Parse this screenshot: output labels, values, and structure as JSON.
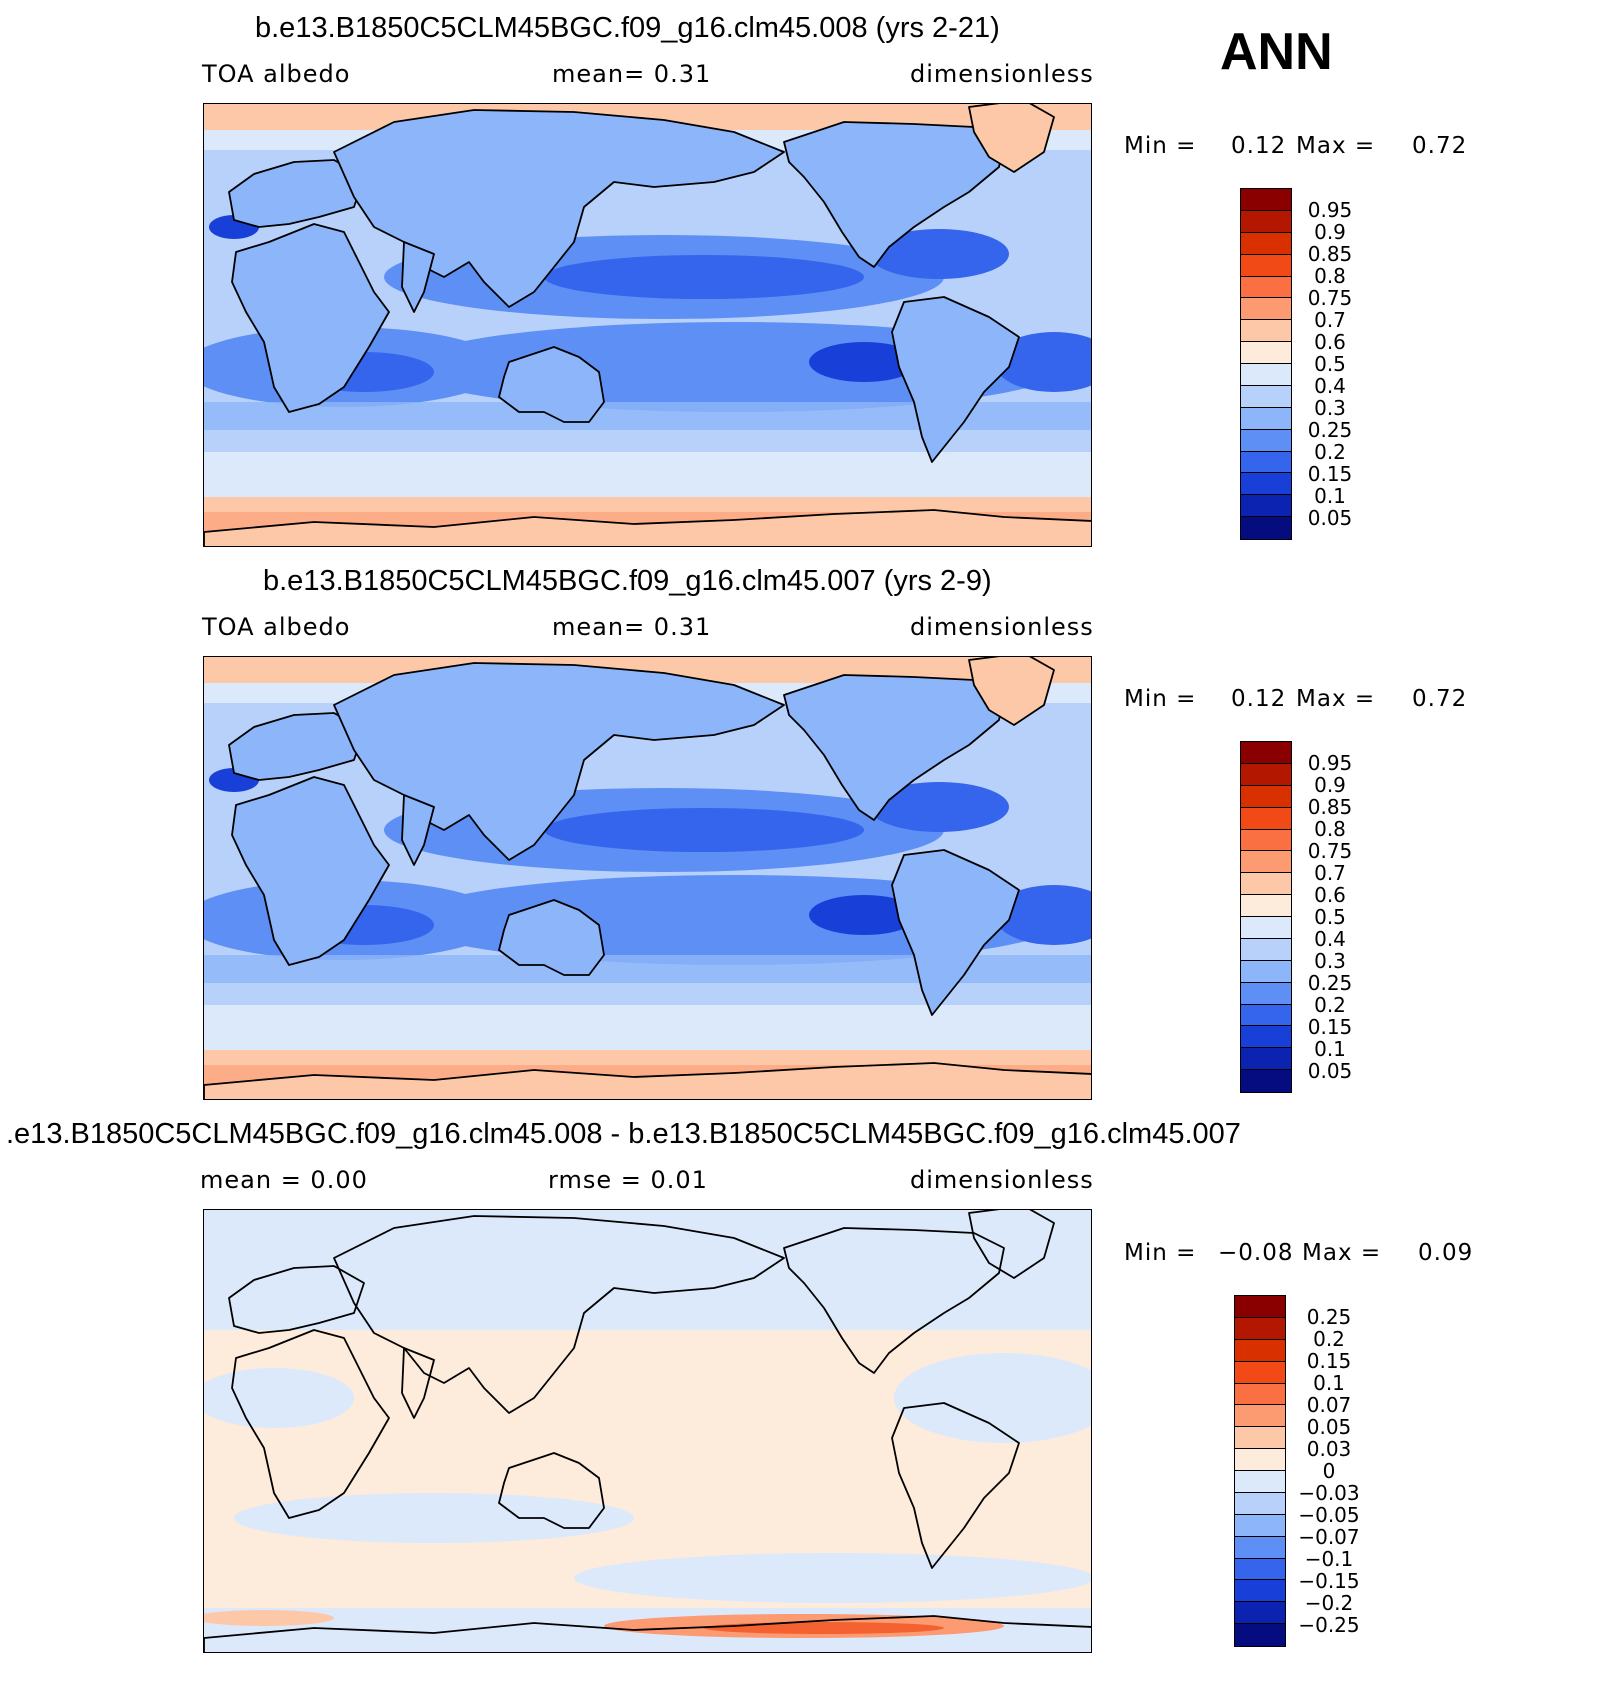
{
  "season": "ANN",
  "panels": [
    {
      "title": "b.e13.B1850C5CLM45BGC.f09_g16.clm45.008 (yrs 2-21)",
      "left_label": "TOA albedo",
      "middle_label": "mean=    0.31",
      "right_label": "dimensionless",
      "min_label": "Min =",
      "min_value": "0.12",
      "max_label": "Max =",
      "max_value": "0.72",
      "field": "absolute",
      "legend_colors": [
        "#8a0000",
        "#b31700",
        "#d93000",
        "#f24a16",
        "#fa7042",
        "#fc9a72",
        "#fdc8a8",
        "#fdebdc",
        "#dbe9fb",
        "#b7d1fa",
        "#8db5f9",
        "#5e8ff5",
        "#3565ec",
        "#1840d9",
        "#0c22b0",
        "#050c80"
      ],
      "legend_ticks": [
        "0.95",
        "0.9",
        "0.85",
        "0.8",
        "0.75",
        "0.7",
        "0.6",
        "0.5",
        "0.4",
        "0.3",
        "0.25",
        "0.2",
        "0.15",
        "0.1",
        "0.05"
      ]
    },
    {
      "title": "b.e13.B1850C5CLM45BGC.f09_g16.clm45.007 (yrs 2-9)",
      "left_label": "TOA albedo",
      "middle_label": "mean=    0.31",
      "right_label": "dimensionless",
      "min_label": "Min =",
      "min_value": "0.12",
      "max_label": "Max =",
      "max_value": "0.72",
      "field": "absolute",
      "legend_colors": [
        "#8a0000",
        "#b31700",
        "#d93000",
        "#f24a16",
        "#fa7042",
        "#fc9a72",
        "#fdc8a8",
        "#fdebdc",
        "#dbe9fb",
        "#b7d1fa",
        "#8db5f9",
        "#5e8ff5",
        "#3565ec",
        "#1840d9",
        "#0c22b0",
        "#050c80"
      ],
      "legend_ticks": [
        "0.95",
        "0.9",
        "0.85",
        "0.8",
        "0.75",
        "0.7",
        "0.6",
        "0.5",
        "0.4",
        "0.3",
        "0.25",
        "0.2",
        "0.15",
        "0.1",
        "0.05"
      ]
    },
    {
      "title": ".e13.B1850C5CLM45BGC.f09_g16.clm45.008 - b.e13.B1850C5CLM45BGC.f09_g16.clm45.007",
      "left_label": "mean =    0.00",
      "middle_label": "rmse =    0.01",
      "right_label": "dimensionless",
      "min_label": "Min =",
      "min_value": "−0.08",
      "max_label": "Max =",
      "max_value": "0.09",
      "field": "difference",
      "legend_colors": [
        "#8a0000",
        "#b31700",
        "#d93000",
        "#f24a16",
        "#fa7042",
        "#fc9a72",
        "#fdc8a8",
        "#fdebdc",
        "#dbe9fb",
        "#b7d1fa",
        "#8db5f9",
        "#5e8ff5",
        "#3565ec",
        "#1840d9",
        "#0c22b0",
        "#050c80"
      ],
      "legend_ticks": [
        "0.25",
        "0.2",
        "0.15",
        "0.1",
        "0.07",
        "0.05",
        "0.03",
        "0",
        "−0.03",
        "−0.05",
        "−0.07",
        "−0.1",
        "−0.15",
        "−0.2",
        "−0.25"
      ]
    }
  ]
}
